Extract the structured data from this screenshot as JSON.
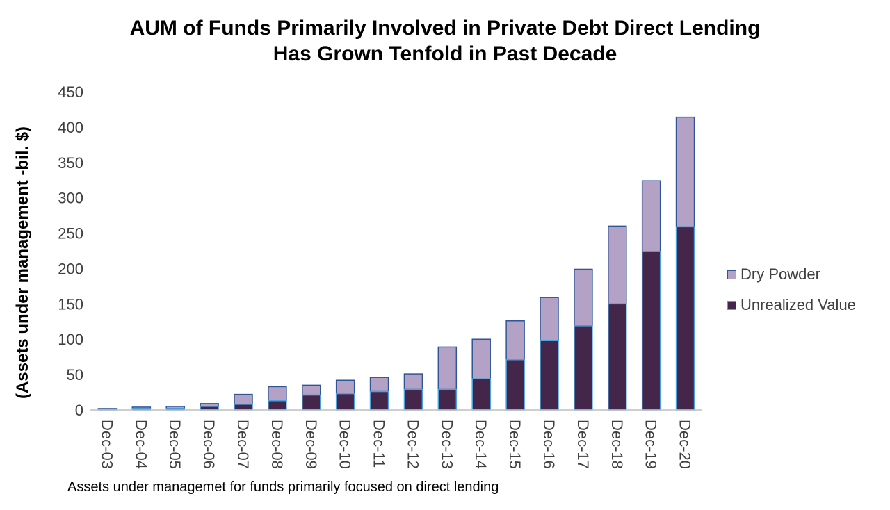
{
  "header": {
    "title_line1": "AUM of Funds Primarily Involved in Private Debt Direct Lending",
    "title_line2": "Has Grown Tenfold in Past Decade"
  },
  "caption": "Assets under managemet for funds primarily focused on direct lending",
  "chart_data": {
    "type": "bar",
    "stacked": true,
    "title": "AUM of Funds Primarily Involved in Private Debt Direct Lending Has Grown Tenfold in Past Decade",
    "xlabel": "",
    "ylabel": "(Assets under management -bil. $)",
    "ylim": [
      0,
      450
    ],
    "yticks": [
      0,
      50,
      100,
      150,
      200,
      250,
      300,
      350,
      400,
      450
    ],
    "grid": false,
    "legend_position": "right",
    "categories": [
      "Dec-03",
      "Dec-04",
      "Dec-05",
      "Dec-06",
      "Dec-07",
      "Dec-08",
      "Dec-09",
      "Dec-10",
      "Dec-11",
      "Dec-12",
      "Dec-13",
      "Dec-14",
      "Dec-15",
      "Dec-16",
      "Dec-17",
      "Dec-18",
      "Dec-19",
      "Dec-20"
    ],
    "series": [
      {
        "name": "Unrealized Value",
        "color": "#44264a",
        "edge_color": "#4aa3df",
        "values": [
          1,
          2,
          2,
          5,
          8,
          13,
          21,
          23,
          26,
          29,
          29,
          44,
          71,
          98,
          119,
          150,
          224,
          259
        ]
      },
      {
        "name": "Dry Powder",
        "color": "#b3a2c6",
        "edge_color": "#2f5597",
        "values": [
          1,
          2,
          3,
          4,
          14,
          20,
          14,
          19,
          20,
          22,
          60,
          56,
          55,
          61,
          80,
          110,
          100,
          155
        ]
      }
    ]
  }
}
